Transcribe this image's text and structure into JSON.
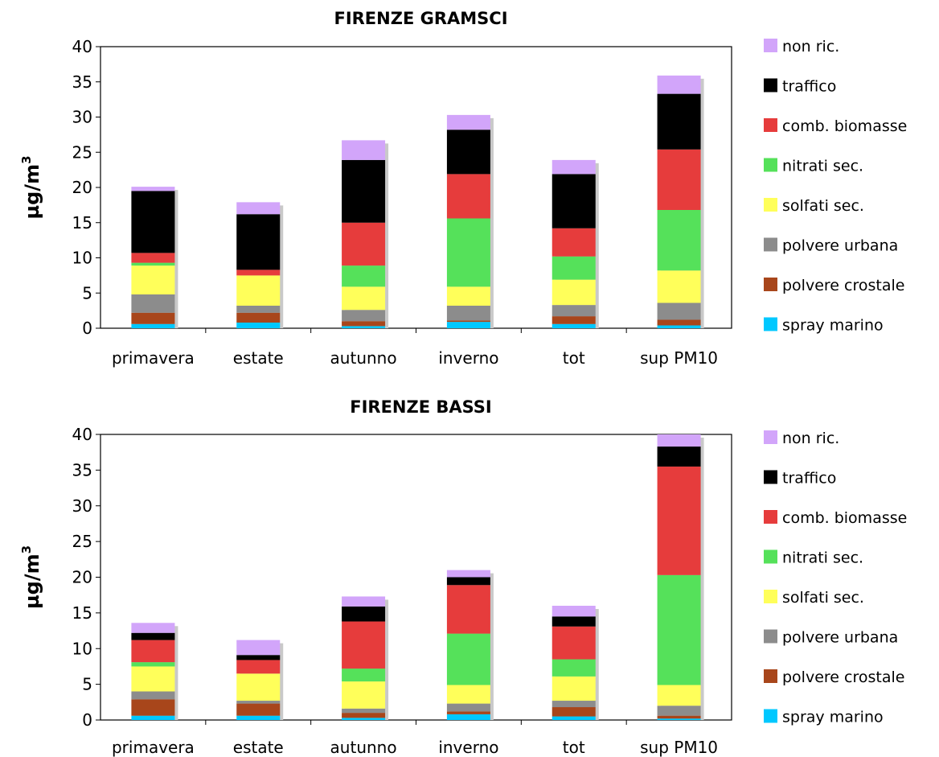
{
  "chart_data": [
    {
      "type": "bar",
      "stacked": true,
      "title": "FIRENZE GRAMSCI",
      "ylabel": "µg/m",
      "ylabel_superscript": "3",
      "ylim": [
        0,
        40
      ],
      "yticks": [
        "0",
        "5",
        "10",
        "15",
        "20",
        "25",
        "30",
        "35",
        "40"
      ],
      "categories": [
        "primavera",
        "estate",
        "autunno",
        "inverno",
        "tot",
        "sup PM10"
      ],
      "legend_position": "right",
      "series": [
        {
          "name": "spray marino",
          "color": "#00c8ff",
          "values": [
            0.6,
            0.8,
            0.3,
            0.9,
            0.6,
            0.4
          ]
        },
        {
          "name": "polvere crostale",
          "color": "#a8461b",
          "values": [
            1.6,
            1.4,
            0.7,
            0.2,
            1.1,
            0.8
          ]
        },
        {
          "name": "polvere urbana",
          "color": "#8c8c8c",
          "values": [
            2.6,
            1.0,
            1.6,
            2.1,
            1.6,
            2.4
          ]
        },
        {
          "name": "solfati sec.",
          "color": "#ffff5a",
          "values": [
            4.1,
            4.3,
            3.3,
            2.7,
            3.6,
            4.6
          ]
        },
        {
          "name": "nitrati sec.",
          "color": "#55e15a",
          "values": [
            0.4,
            0.0,
            3.0,
            9.7,
            3.3,
            8.6
          ]
        },
        {
          "name": "comb. biomasse",
          "color": "#e63c3c",
          "values": [
            1.4,
            0.8,
            6.1,
            6.3,
            4.0,
            8.6
          ]
        },
        {
          "name": "traffico",
          "color": "#000000",
          "values": [
            8.8,
            7.9,
            8.9,
            6.3,
            7.7,
            7.9
          ]
        },
        {
          "name": "non ric.",
          "color": "#d2a5fa",
          "values": [
            0.6,
            1.7,
            2.8,
            2.1,
            2.0,
            2.6
          ]
        }
      ]
    },
    {
      "type": "bar",
      "stacked": true,
      "title": "FIRENZE BASSI",
      "ylabel": "µg/m",
      "ylabel_superscript": "3",
      "ylim": [
        0,
        40
      ],
      "yticks": [
        "0",
        "5",
        "10",
        "15",
        "20",
        "25",
        "30",
        "35",
        "40"
      ],
      "categories": [
        "primavera",
        "estate",
        "autunno",
        "inverno",
        "tot",
        "sup PM10"
      ],
      "legend_position": "right",
      "series": [
        {
          "name": "spray marino",
          "color": "#00c8ff",
          "values": [
            0.6,
            0.6,
            0.3,
            0.8,
            0.5,
            0.2
          ]
        },
        {
          "name": "polvere crostale",
          "color": "#a8461b",
          "values": [
            2.3,
            1.7,
            0.7,
            0.4,
            1.3,
            0.4
          ]
        },
        {
          "name": "polvere urbana",
          "color": "#8c8c8c",
          "values": [
            1.1,
            0.4,
            0.6,
            1.1,
            0.9,
            1.4
          ]
        },
        {
          "name": "solfati sec.",
          "color": "#ffff5a",
          "values": [
            3.5,
            3.8,
            3.8,
            2.6,
            3.4,
            2.9
          ]
        },
        {
          "name": "nitrati sec.",
          "color": "#55e15a",
          "values": [
            0.6,
            0.0,
            1.8,
            7.2,
            2.4,
            15.4
          ]
        },
        {
          "name": "comb. biomasse",
          "color": "#e63c3c",
          "values": [
            3.1,
            1.9,
            6.6,
            6.8,
            4.6,
            15.2
          ]
        },
        {
          "name": "traffico",
          "color": "#000000",
          "values": [
            1.0,
            0.7,
            2.1,
            1.1,
            1.4,
            2.8
          ]
        },
        {
          "name": "non ric.",
          "color": "#d2a5fa",
          "values": [
            1.4,
            2.1,
            1.4,
            1.0,
            1.5,
            1.7
          ]
        }
      ]
    }
  ]
}
